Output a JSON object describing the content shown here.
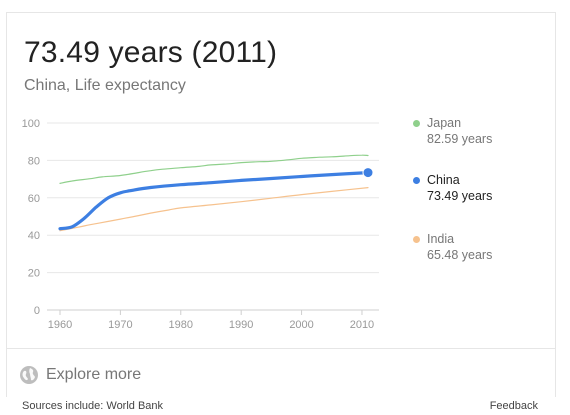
{
  "headline": "73.49 years (2011)",
  "subtitle": "China, Life expectancy",
  "colors": {
    "japan": "#8fd08c",
    "china": "#3d7fe2",
    "india": "#f6c28e",
    "grid": "#e7e7e7",
    "axis_text": "#999999"
  },
  "legend": [
    {
      "name": "Japan",
      "value": "82.59 years",
      "color": "#8fd08c",
      "highlight": false
    },
    {
      "name": "China",
      "value": "73.49 years",
      "color": "#3d7fe2",
      "highlight": true
    },
    {
      "name": "India",
      "value": "65.48 years",
      "color": "#f6c28e",
      "highlight": false
    }
  ],
  "explore_label": "Explore more",
  "sources_label": "Sources include: World Bank",
  "feedback_label": "Feedback",
  "chart_data": {
    "type": "line",
    "title": "",
    "xlabel": "",
    "ylabel": "",
    "ylim": [
      0,
      100
    ],
    "xlim": [
      1960,
      2011
    ],
    "y_ticks": [
      0,
      20,
      40,
      60,
      80,
      100
    ],
    "x_ticks": [
      1960,
      1970,
      1980,
      1990,
      2000,
      2010
    ],
    "grid": true,
    "legend_position": "right",
    "series": [
      {
        "name": "Japan",
        "color": "#8fd08c",
        "x": [
          1960,
          1962,
          1965,
          1967,
          1970,
          1973,
          1975,
          1977,
          1980,
          1983,
          1985,
          1988,
          1990,
          1993,
          1995,
          1998,
          2000,
          2003,
          2005,
          2008,
          2010,
          2011
        ],
        "y": [
          67.7,
          69.0,
          70.2,
          71.2,
          71.9,
          73.5,
          74.5,
          75.3,
          76.1,
          76.8,
          77.6,
          78.2,
          78.8,
          79.3,
          79.5,
          80.4,
          81.1,
          81.7,
          81.9,
          82.5,
          82.8,
          82.6
        ]
      },
      {
        "name": "China",
        "color": "#3d7fe2",
        "x": [
          1960,
          1962,
          1964,
          1966,
          1968,
          1970,
          1972,
          1975,
          1980,
          1985,
          1990,
          1995,
          2000,
          2005,
          2011
        ],
        "y": [
          43.5,
          44.5,
          49.0,
          55.0,
          60.0,
          62.7,
          64.0,
          65.5,
          67.0,
          68.1,
          69.3,
          70.3,
          71.4,
          72.4,
          73.49
        ]
      },
      {
        "name": "India",
        "color": "#f6c28e",
        "x": [
          1960,
          1963,
          1965,
          1968,
          1970,
          1973,
          1975,
          1978,
          1980,
          1985,
          1990,
          1995,
          2000,
          2005,
          2011
        ],
        "y": [
          42.4,
          44.3,
          45.6,
          47.4,
          48.6,
          50.5,
          51.8,
          53.5,
          54.6,
          56.2,
          57.9,
          59.8,
          61.7,
          63.4,
          65.48
        ]
      }
    ],
    "highlight_point": {
      "series": "China",
      "x": 2011,
      "y": 73.49
    }
  }
}
